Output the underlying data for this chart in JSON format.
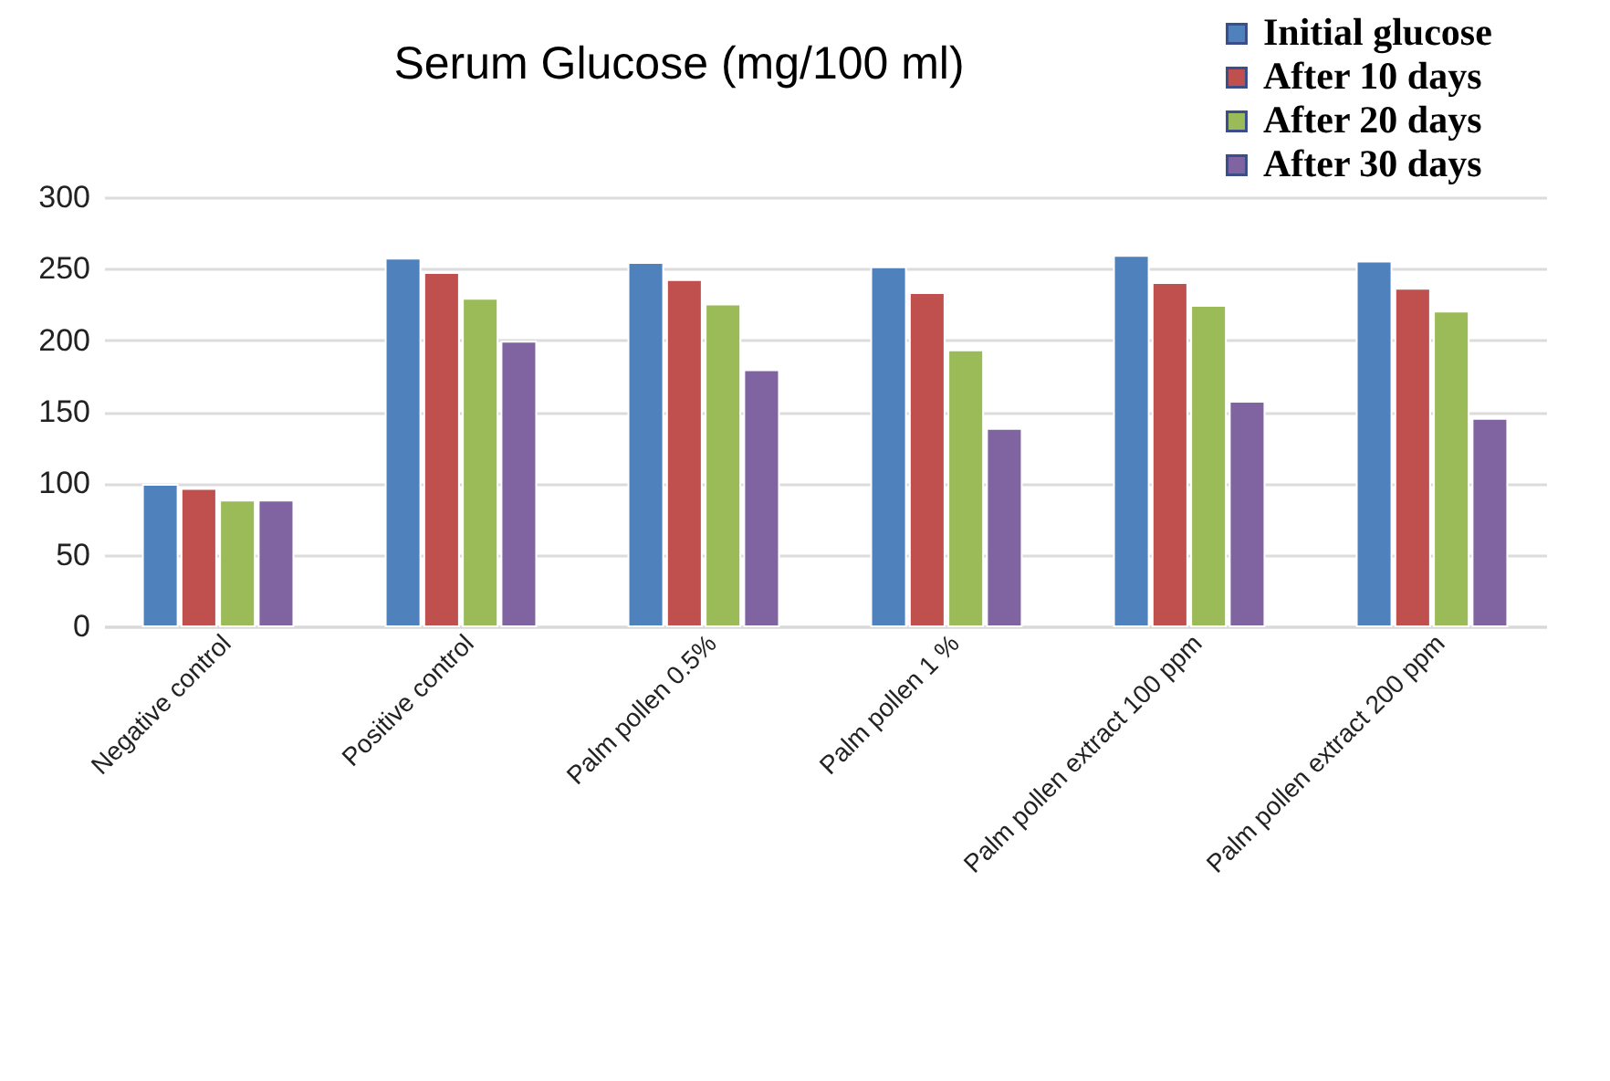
{
  "chart_data": {
    "type": "bar",
    "title": "Serum Glucose (mg/100 ml)",
    "categories": [
      "Negative control",
      "Positive control",
      "Palm pollen 0.5%",
      "Palm pollen 1 %",
      "Palm pollen extract 100 ppm",
      "Palm pollen extract 200 ppm"
    ],
    "series": [
      {
        "name": "Initial glucose",
        "color": "#4f81bd",
        "values": [
          99,
          257,
          254,
          251,
          259,
          255
        ]
      },
      {
        "name": "After 10 days",
        "color": "#c0504d",
        "values": [
          96,
          247,
          242,
          233,
          240,
          236
        ]
      },
      {
        "name": "After 20 days",
        "color": "#9bbb59",
        "values": [
          88,
          229,
          225,
          193,
          224,
          220
        ]
      },
      {
        "name": "After 30 days",
        "color": "#8064a2",
        "values": [
          88,
          199,
          179,
          138,
          157,
          145
        ]
      }
    ],
    "ylim": [
      0,
      300
    ],
    "yticks": [
      0,
      50,
      100,
      150,
      200,
      250,
      300
    ],
    "grid": "y",
    "legend": "top right"
  }
}
